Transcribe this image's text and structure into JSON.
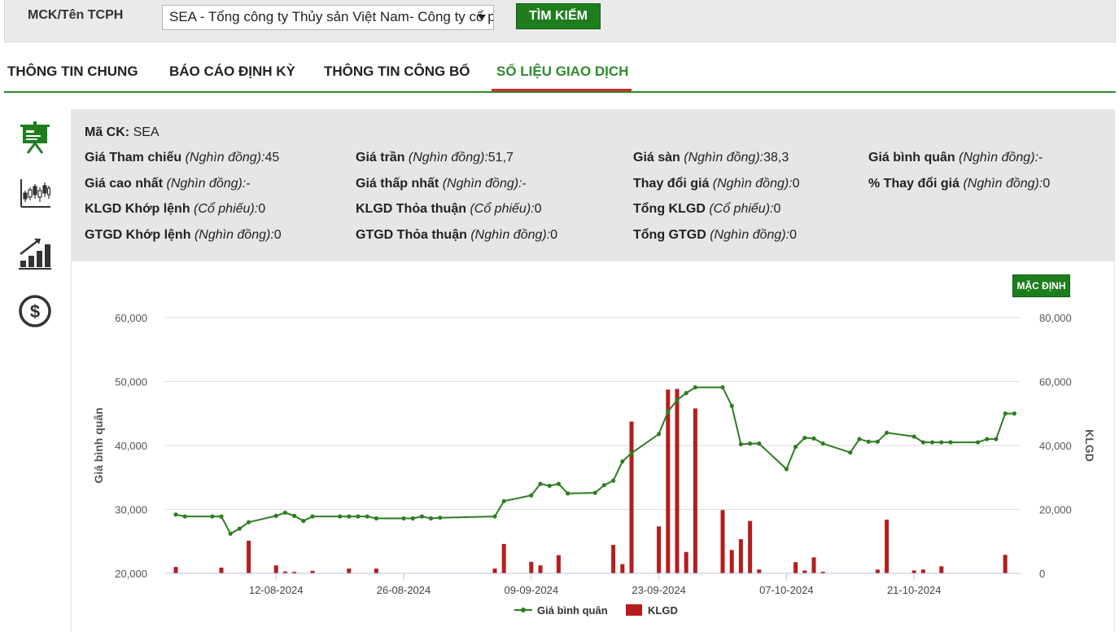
{
  "search": {
    "label": "MCK/Tên TCPH",
    "selected": "SEA - Tổng công ty Thủy sản Việt Nam- Công ty cổ phần",
    "button": "TÌM KIẾM"
  },
  "tabs": [
    {
      "label": "THÔNG TIN CHUNG",
      "active": false
    },
    {
      "label": "BÁO CÁO ĐỊNH KỲ",
      "active": false
    },
    {
      "label": "THÔNG TIN CÔNG BỐ",
      "active": false
    },
    {
      "label": "SỐ LIỆU GIAO DỊCH",
      "active": true
    }
  ],
  "side_icons": [
    "presentation-board-icon",
    "candlestick-chart-icon",
    "growth-bar-chart-icon",
    "dollar-coin-icon"
  ],
  "info": {
    "ma_ck": {
      "label": "Mã CK:",
      "value": "SEA"
    },
    "rows": [
      [
        {
          "label": "Giá Tham chiếu",
          "unit": "(Nghìn đồng):",
          "value": "45"
        },
        {
          "label": "Giá trần",
          "unit": "(Nghìn đồng):",
          "value": "51,7"
        },
        {
          "label": "Giá sàn",
          "unit": "(Nghìn đồng):",
          "value": "38,3"
        },
        {
          "label": "Giá bình quân",
          "unit": "(Nghìn đồng):",
          "value": "-"
        }
      ],
      [
        {
          "label": "Giá cao nhất",
          "unit": "(Nghìn đồng):",
          "value": "-"
        },
        {
          "label": "Giá thấp nhất",
          "unit": "(Nghìn đồng):",
          "value": "-"
        },
        {
          "label": "Thay đổi giá",
          "unit": "(Nghìn đồng):",
          "value": "0"
        },
        {
          "label": "% Thay đổi giá",
          "unit": "(Nghìn đồng):",
          "value": "0"
        }
      ],
      [
        {
          "label": "KLGD Khớp lệnh",
          "unit": "(Cổ phiếu):",
          "value": "0"
        },
        {
          "label": "KLGD Thỏa thuận",
          "unit": "(Cổ phiếu):",
          "value": "0"
        },
        {
          "label": "Tổng KLGD",
          "unit": "(Cổ phiếu):",
          "value": "0"
        }
      ],
      [
        {
          "label": "GTGD Khớp lệnh",
          "unit": "(Nghìn đồng):",
          "value": "0"
        },
        {
          "label": "GTGD Thỏa thuận",
          "unit": "(Nghìn đồng):",
          "value": "0"
        },
        {
          "label": "Tổng GTGD",
          "unit": "(Nghìn đồng):",
          "value": "0"
        }
      ]
    ]
  },
  "default_button": "MẶC ĐỊNH",
  "colors": {
    "accent": "#1e7e1e",
    "line": "#2e7d22",
    "bar": "#b71c1c",
    "tab_underline": "#d42b2b"
  },
  "chart_data": {
    "type": "bar+line",
    "x_start": "2024-08-01",
    "x_ticks": [
      "12-08-2024",
      "26-08-2024",
      "09-09-2024",
      "23-09-2024",
      "07-10-2024",
      "21-10-2024"
    ],
    "ylabel_left": "Giá bình quân",
    "ylabel_right": "KLGD",
    "ylim_left": [
      20000,
      60000
    ],
    "ylim_right": [
      0,
      80000
    ],
    "yticks_left": [
      "60,000",
      "50,000",
      "40,000",
      "30,000",
      "20,000"
    ],
    "yticks_right": [
      "80,000",
      "60,000",
      "40,000",
      "20,000",
      "0"
    ],
    "legend": [
      "Giá bình quân",
      "KLGD"
    ],
    "legend_position": "bottom-center",
    "grid": true,
    "price_series": {
      "name": "Giá bình quân",
      "points": [
        [
          "2024-08-01",
          29200
        ],
        [
          "2024-08-02",
          28900
        ],
        [
          "2024-08-05",
          28900
        ],
        [
          "2024-08-06",
          28900
        ],
        [
          "2024-08-07",
          26200
        ],
        [
          "2024-08-08",
          27000
        ],
        [
          "2024-08-09",
          28000
        ],
        [
          "2024-08-12",
          29000
        ],
        [
          "2024-08-13",
          29500
        ],
        [
          "2024-08-14",
          29000
        ],
        [
          "2024-08-15",
          28200
        ],
        [
          "2024-08-16",
          28900
        ],
        [
          "2024-08-19",
          28900
        ],
        [
          "2024-08-20",
          28900
        ],
        [
          "2024-08-21",
          28900
        ],
        [
          "2024-08-22",
          28900
        ],
        [
          "2024-08-23",
          28600
        ],
        [
          "2024-08-26",
          28600
        ],
        [
          "2024-08-27",
          28600
        ],
        [
          "2024-08-28",
          28900
        ],
        [
          "2024-08-29",
          28600
        ],
        [
          "2024-08-30",
          28700
        ],
        [
          "2024-09-05",
          28900
        ],
        [
          "2024-09-06",
          31300
        ],
        [
          "2024-09-09",
          32200
        ],
        [
          "2024-09-10",
          34000
        ],
        [
          "2024-09-11",
          33700
        ],
        [
          "2024-09-12",
          34000
        ],
        [
          "2024-09-13",
          32500
        ],
        [
          "2024-09-16",
          32600
        ],
        [
          "2024-09-17",
          33800
        ],
        [
          "2024-09-18",
          34500
        ],
        [
          "2024-09-19",
          37500
        ],
        [
          "2024-09-20",
          38800
        ],
        [
          "2024-09-23",
          41800
        ],
        [
          "2024-09-24",
          45300
        ],
        [
          "2024-09-25",
          47100
        ],
        [
          "2024-09-26",
          48200
        ],
        [
          "2024-09-27",
          49100
        ],
        [
          "2024-09-30",
          49100
        ],
        [
          "2024-10-01",
          46200
        ],
        [
          "2024-10-02",
          40200
        ],
        [
          "2024-10-03",
          40300
        ],
        [
          "2024-10-04",
          40300
        ],
        [
          "2024-10-07",
          36300
        ],
        [
          "2024-10-08",
          39800
        ],
        [
          "2024-10-09",
          41200
        ],
        [
          "2024-10-10",
          41100
        ],
        [
          "2024-10-11",
          40300
        ],
        [
          "2024-10-14",
          38900
        ],
        [
          "2024-10-15",
          41000
        ],
        [
          "2024-10-16",
          40600
        ],
        [
          "2024-10-17",
          40600
        ],
        [
          "2024-10-18",
          42000
        ],
        [
          "2024-10-21",
          41400
        ],
        [
          "2024-10-22",
          40500
        ],
        [
          "2024-10-23",
          40500
        ],
        [
          "2024-10-24",
          40500
        ],
        [
          "2024-10-25",
          40500
        ],
        [
          "2024-10-28",
          40500
        ],
        [
          "2024-10-29",
          41000
        ],
        [
          "2024-10-30",
          41000
        ],
        [
          "2024-10-31",
          45000
        ],
        [
          "2024-11-01",
          45000
        ]
      ]
    },
    "volume_series": {
      "name": "KLGD",
      "points": [
        [
          "2024-08-01",
          2000
        ],
        [
          "2024-08-06",
          1800
        ],
        [
          "2024-08-09",
          10200
        ],
        [
          "2024-08-12",
          2500
        ],
        [
          "2024-08-13",
          600
        ],
        [
          "2024-08-14",
          500
        ],
        [
          "2024-08-16",
          800
        ],
        [
          "2024-08-20",
          1500
        ],
        [
          "2024-08-23",
          1500
        ],
        [
          "2024-09-05",
          1500
        ],
        [
          "2024-09-06",
          9200
        ],
        [
          "2024-09-09",
          3600
        ],
        [
          "2024-09-10",
          2500
        ],
        [
          "2024-09-12",
          5700
        ],
        [
          "2024-09-18",
          8900
        ],
        [
          "2024-09-19",
          2900
        ],
        [
          "2024-09-20",
          47500
        ],
        [
          "2024-09-23",
          14700
        ],
        [
          "2024-09-24",
          57500
        ],
        [
          "2024-09-25",
          57700
        ],
        [
          "2024-09-26",
          6700
        ],
        [
          "2024-09-27",
          51600
        ],
        [
          "2024-09-30",
          19800
        ],
        [
          "2024-10-01",
          7300
        ],
        [
          "2024-10-02",
          10700
        ],
        [
          "2024-10-03",
          16400
        ],
        [
          "2024-10-04",
          1200
        ],
        [
          "2024-10-08",
          3500
        ],
        [
          "2024-10-09",
          900
        ],
        [
          "2024-10-10",
          5000
        ],
        [
          "2024-10-11",
          500
        ],
        [
          "2024-10-17",
          1200
        ],
        [
          "2024-10-18",
          16800
        ],
        [
          "2024-10-21",
          900
        ],
        [
          "2024-10-22",
          1200
        ],
        [
          "2024-10-24",
          2200
        ],
        [
          "2024-10-31",
          5800
        ]
      ]
    }
  }
}
